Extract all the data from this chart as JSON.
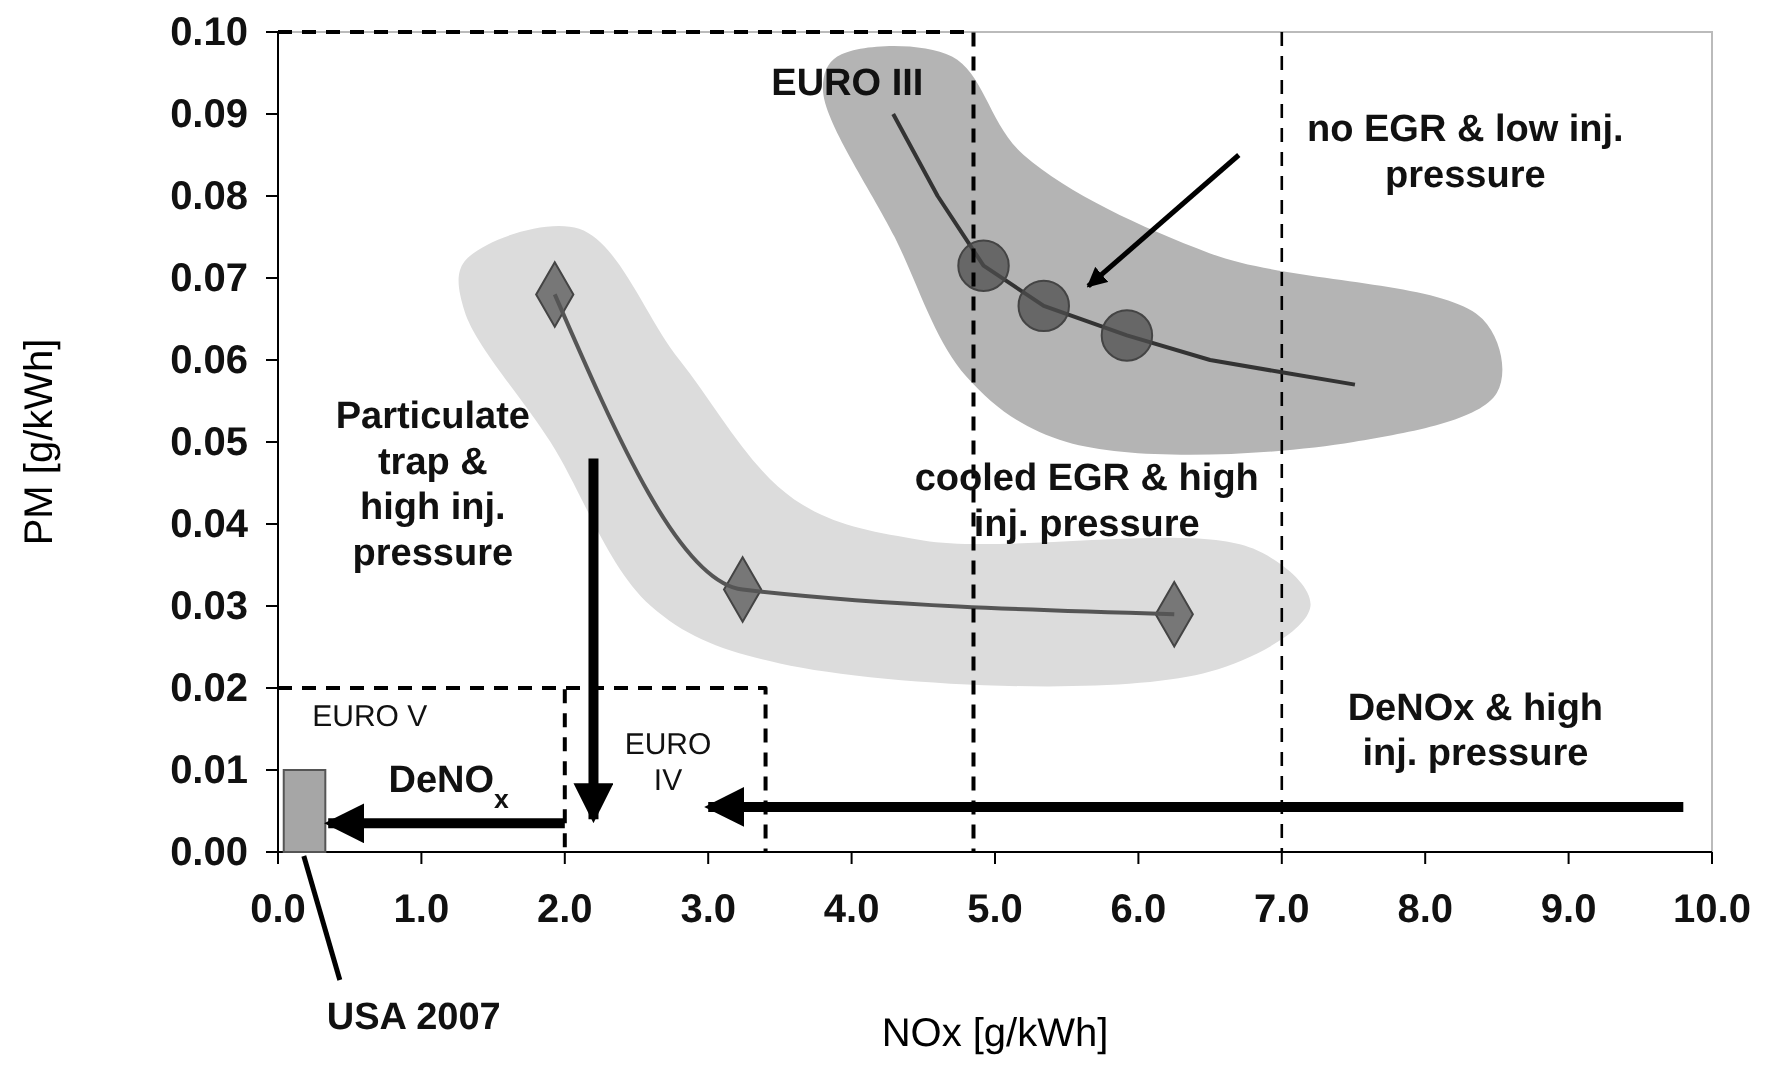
{
  "chart_data": {
    "type": "line",
    "xlabel": "NOx [g/kWh]",
    "ylabel": "PM [g/kWh]",
    "xlim": [
      0,
      10
    ],
    "ylim": [
      0,
      0.1
    ],
    "xticks": [
      {
        "value": 0,
        "label": "0.0"
      },
      {
        "value": 1,
        "label": "1.0"
      },
      {
        "value": 2,
        "label": "2.0"
      },
      {
        "value": 3,
        "label": "3.0"
      },
      {
        "value": 4,
        "label": "4.0"
      },
      {
        "value": 5,
        "label": "5.0"
      },
      {
        "value": 6,
        "label": "6.0"
      },
      {
        "value": 7,
        "label": "7.0"
      },
      {
        "value": 8,
        "label": "8.0"
      },
      {
        "value": 9,
        "label": "9.0"
      },
      {
        "value": 10,
        "label": "10.0"
      }
    ],
    "yticks": [
      {
        "value": 0,
        "label": "0.00"
      },
      {
        "value": 0.01,
        "label": "0.01"
      },
      {
        "value": 0.02,
        "label": "0.02"
      },
      {
        "value": 0.03,
        "label": "0.03"
      },
      {
        "value": 0.04,
        "label": "0.04"
      },
      {
        "value": 0.05,
        "label": "0.05"
      },
      {
        "value": 0.06,
        "label": "0.06"
      },
      {
        "value": 0.07,
        "label": "0.07"
      },
      {
        "value": 0.08,
        "label": "0.08"
      },
      {
        "value": 0.09,
        "label": "0.09"
      },
      {
        "value": 0.1,
        "label": "0.10"
      }
    ],
    "grid": false,
    "series": [
      {
        "color": "#333333",
        "marker": "none",
        "x": [
          4.29,
          4.6,
          4.92,
          5.34,
          5.92,
          6.5,
          7.0,
          7.51
        ],
        "values": [
          0.09,
          0.08,
          0.0715,
          0.0666,
          0.063,
          0.06,
          0.0585,
          0.057
        ]
      },
      {
        "type": "scatter",
        "color": "#4d4d4d",
        "marker": "circle",
        "x": [
          4.92,
          5.34,
          5.92
        ],
        "values": [
          0.0715,
          0.0666,
          0.063
        ]
      },
      {
        "color": "#555555",
        "marker": "diamond",
        "x": [
          1.93,
          3.24,
          6.25
        ],
        "values": [
          0.068,
          0.032,
          0.029
        ]
      },
      {
        "color": "#000000",
        "line_style": "dashed",
        "marker": "none",
        "x": [
          0,
          4.85,
          4.85
        ],
        "values": [
          0.1,
          0.1,
          0
        ]
      },
      {
        "color": "#000000",
        "line_style": "dashed",
        "marker": "none",
        "x": [
          0,
          3.4,
          3.4
        ],
        "values": [
          0.02,
          0.02,
          0
        ]
      },
      {
        "color": "#000000",
        "line_style": "dashed",
        "marker": "none",
        "x": [
          0,
          2.0,
          2.0
        ],
        "values": [
          0.02,
          0.02,
          0
        ]
      },
      {
        "type": "area",
        "color": "#a6a6a6",
        "marker": "none",
        "x": [
          0.04,
          0.33
        ],
        "values": [
          0.01,
          0.01
        ]
      }
    ],
    "ref_lines": [
      {
        "axis": "x",
        "value": 7,
        "line_style": "dashed",
        "color": "#000000"
      }
    ],
    "annotations": [
      "EURO III",
      "no EGR & low inj.\npressure",
      "Particulate\ntrap &\nhigh inj.\npressure",
      "cooled EGR & high\ninj. pressure",
      "DeNOx & high\ninj. pressure",
      "EURO V",
      "EURO\nIV",
      "DeNO$_{x}$",
      {
        "text": "USA 2007",
        "x": 0.18,
        "y": 0
      }
    ]
  }
}
